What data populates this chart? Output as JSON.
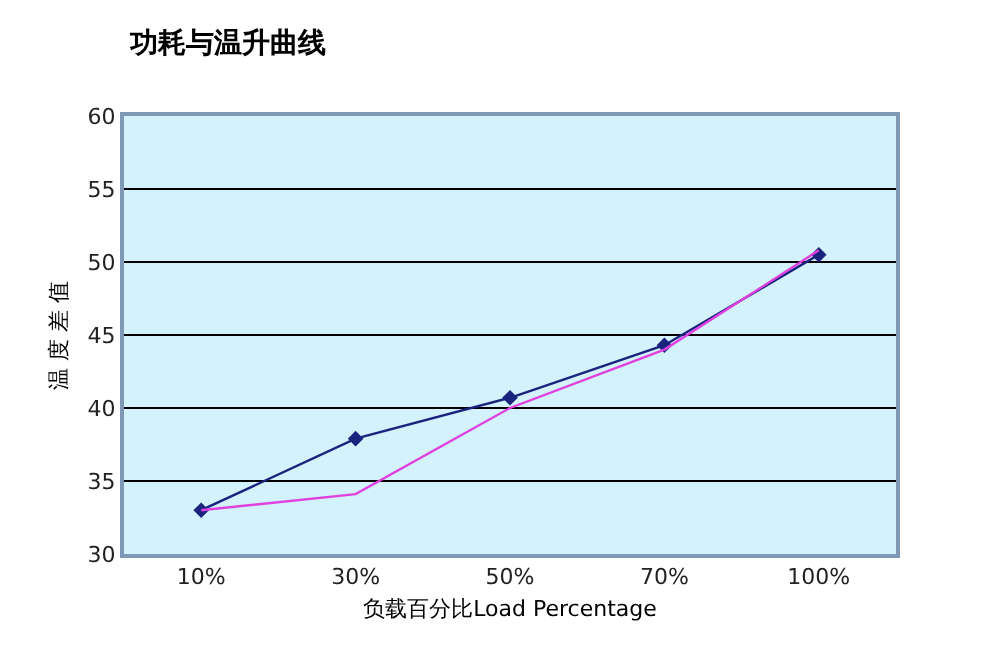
{
  "chart_data": {
    "type": "line",
    "title": "功耗与温升曲线",
    "xlabel": "负载百分比Load Percentage",
    "ylabel": "温 度 差 值",
    "categories": [
      "10%",
      "30%",
      "50%",
      "70%",
      "100%"
    ],
    "series": [
      {
        "color": "#1a237e",
        "marker": "diamond",
        "values": [
          33,
          37.9,
          40.7,
          44.3,
          50.5
        ]
      },
      {
        "color": "#e040e0",
        "marker": "none",
        "values": [
          33,
          34.1,
          40,
          44,
          50.8
        ]
      }
    ],
    "ylim": [
      30,
      60
    ],
    "yticks": [
      30,
      35,
      40,
      45,
      50,
      55,
      60
    ],
    "grid": "y"
  }
}
